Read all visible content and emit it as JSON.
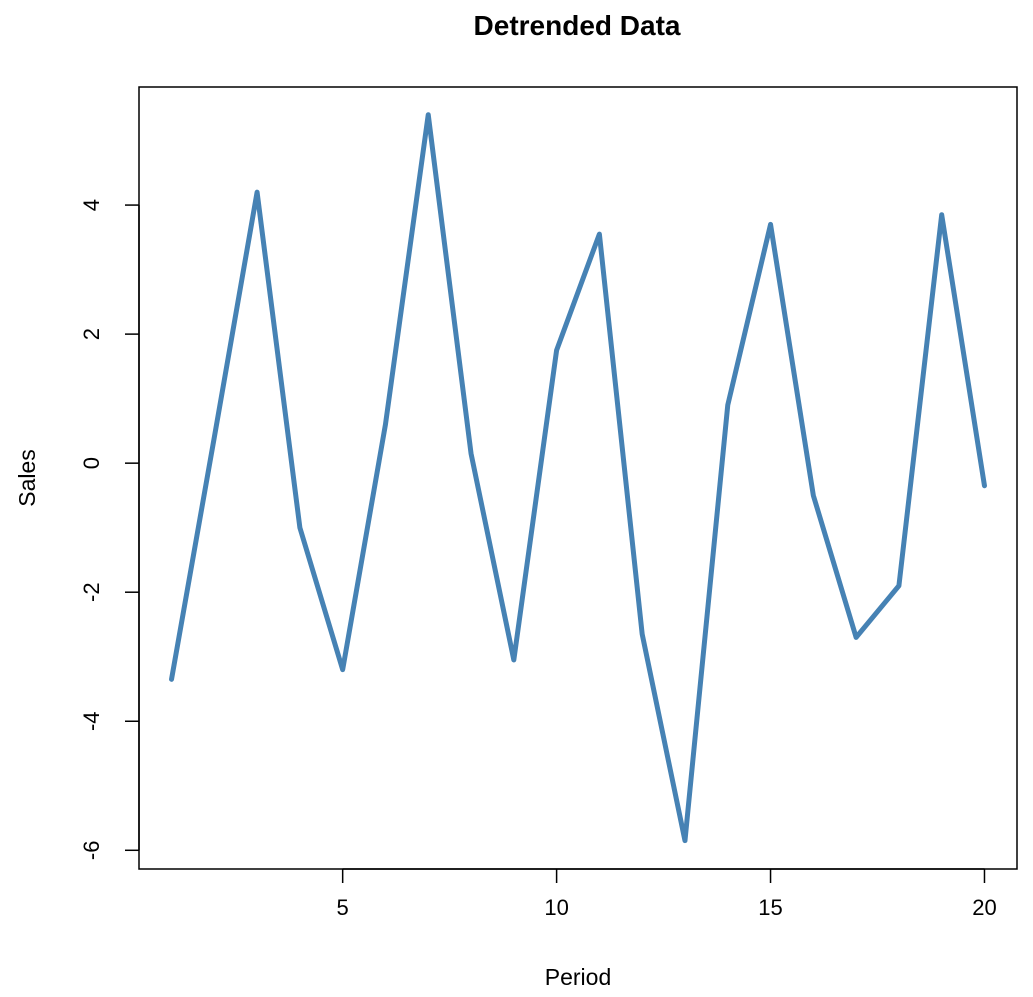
{
  "chart_data": {
    "type": "line",
    "title": "Detrended Data",
    "xlabel": "Period",
    "ylabel": "Sales",
    "x": [
      1,
      2,
      3,
      4,
      5,
      6,
      7,
      8,
      9,
      10,
      11,
      12,
      13,
      14,
      15,
      16,
      17,
      18,
      19,
      20
    ],
    "series": [
      {
        "values": [
          -3.35,
          0.4,
          4.2,
          -1.0,
          -3.2,
          0.6,
          5.4,
          0.15,
          -3.05,
          1.75,
          3.55,
          -2.65,
          -5.85,
          0.9,
          3.7,
          -0.5,
          -2.7,
          -1.9,
          3.85,
          -0.35
        ],
        "color": "#4682b4"
      }
    ],
    "xlim": [
      0.24,
      20.76
    ],
    "ylim": [
      -6.29,
      5.83
    ],
    "x_ticks": [
      5,
      10,
      15,
      20
    ],
    "y_ticks": [
      -6,
      -4,
      -2,
      0,
      2,
      4
    ],
    "x_tick_labels": [
      "5",
      "10",
      "15",
      "20"
    ],
    "y_tick_labels": [
      "-6",
      "-4",
      "-2",
      "0",
      "2",
      "4"
    ],
    "grid": false,
    "legend": "none"
  }
}
